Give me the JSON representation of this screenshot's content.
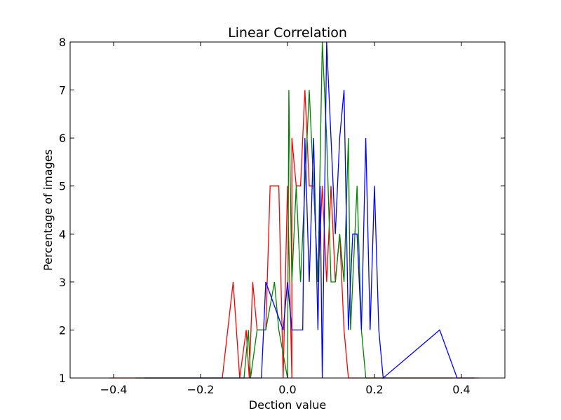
{
  "chart_data": {
    "type": "line",
    "title": "Linear Correlation",
    "xlabel": "Dection value",
    "ylabel": "Percentage of images",
    "xlim": [
      -0.5,
      0.5
    ],
    "ylim": [
      1,
      8
    ],
    "xticks": [
      {
        "value": -0.4,
        "label": "−0.4"
      },
      {
        "value": -0.2,
        "label": "−0.2"
      },
      {
        "value": 0.0,
        "label": "0.0"
      },
      {
        "value": 0.2,
        "label": "0.2"
      },
      {
        "value": 0.4,
        "label": "0.4"
      }
    ],
    "yticks": [
      {
        "value": 1,
        "label": "1"
      },
      {
        "value": 2,
        "label": "2"
      },
      {
        "value": 3,
        "label": "3"
      },
      {
        "value": 4,
        "label": "4"
      },
      {
        "value": 5,
        "label": "5"
      },
      {
        "value": 6,
        "label": "6"
      },
      {
        "value": 7,
        "label": "7"
      },
      {
        "value": 8,
        "label": "8"
      }
    ],
    "grid": false,
    "legend": "none",
    "series": [
      {
        "color": "#ff0000",
        "points": [
          [
            -0.41,
            1
          ],
          [
            -0.15,
            1
          ],
          [
            -0.125,
            3
          ],
          [
            -0.11,
            1
          ],
          [
            -0.095,
            2
          ],
          [
            -0.088,
            1
          ],
          [
            -0.08,
            3
          ],
          [
            -0.07,
            2
          ],
          [
            -0.05,
            2
          ],
          [
            -0.04,
            5
          ],
          [
            -0.03,
            5
          ],
          [
            -0.02,
            5
          ],
          [
            -0.01,
            1
          ],
          [
            0.0,
            5
          ],
          [
            0.01,
            1
          ],
          [
            0.01,
            6
          ],
          [
            0.02,
            5
          ],
          [
            0.03,
            5
          ],
          [
            0.04,
            7
          ],
          [
            0.05,
            5
          ],
          [
            0.06,
            5
          ],
          [
            0.07,
            3
          ],
          [
            0.08,
            5
          ],
          [
            0.09,
            3
          ],
          [
            0.1,
            5
          ],
          [
            0.11,
            3
          ],
          [
            0.12,
            4
          ],
          [
            0.13,
            2
          ],
          [
            0.14,
            1
          ],
          [
            0.44,
            1
          ]
        ]
      },
      {
        "color": "#008000",
        "points": [
          [
            -0.35,
            1
          ],
          [
            -0.12,
            1
          ],
          [
            -0.1,
            1
          ],
          [
            -0.09,
            2
          ],
          [
            -0.085,
            1
          ],
          [
            -0.07,
            2
          ],
          [
            -0.05,
            2
          ],
          [
            -0.03,
            3
          ],
          [
            -0.02,
            2
          ],
          [
            0.0,
            1
          ],
          [
            0.003,
            7
          ],
          [
            0.01,
            3
          ],
          [
            0.02,
            5
          ],
          [
            0.03,
            3
          ],
          [
            0.04,
            5
          ],
          [
            0.05,
            7
          ],
          [
            0.06,
            5
          ],
          [
            0.07,
            3
          ],
          [
            0.08,
            8
          ],
          [
            0.09,
            6
          ],
          [
            0.1,
            3
          ],
          [
            0.11,
            3
          ],
          [
            0.12,
            4
          ],
          [
            0.13,
            3
          ],
          [
            0.14,
            6
          ],
          [
            0.145,
            2
          ],
          [
            0.16,
            5
          ],
          [
            0.17,
            2
          ],
          [
            0.18,
            1
          ],
          [
            0.38,
            1
          ]
        ]
      },
      {
        "color": "#0000ff",
        "points": [
          [
            -0.33,
            1
          ],
          [
            -0.06,
            1
          ],
          [
            -0.05,
            3
          ],
          [
            -0.01,
            2
          ],
          [
            0.0,
            3
          ],
          [
            0.01,
            2
          ],
          [
            0.035,
            2
          ],
          [
            0.04,
            6
          ],
          [
            0.05,
            3
          ],
          [
            0.06,
            6
          ],
          [
            0.07,
            2
          ],
          [
            0.075,
            5
          ],
          [
            0.08,
            1
          ],
          [
            0.09,
            8
          ],
          [
            0.1,
            6
          ],
          [
            0.11,
            4
          ],
          [
            0.12,
            6
          ],
          [
            0.13,
            7
          ],
          [
            0.14,
            2
          ],
          [
            0.15,
            4
          ],
          [
            0.16,
            4
          ],
          [
            0.17,
            2
          ],
          [
            0.18,
            6
          ],
          [
            0.19,
            2
          ],
          [
            0.2,
            5
          ],
          [
            0.21,
            2
          ],
          [
            0.22,
            1
          ],
          [
            0.35,
            2
          ],
          [
            0.39,
            1
          ],
          [
            0.43,
            1
          ]
        ]
      }
    ]
  }
}
